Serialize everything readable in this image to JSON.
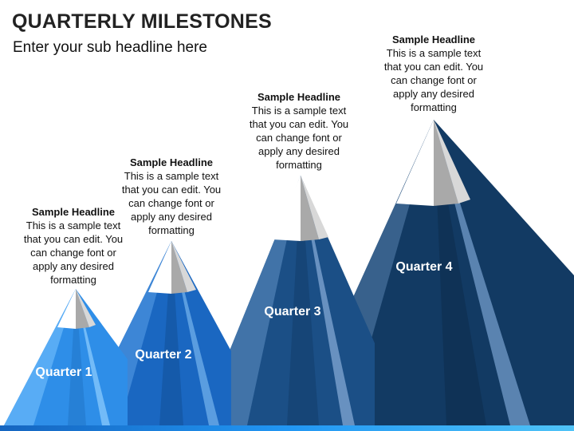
{
  "header": {
    "title": "QUARTERLY MILESTONES",
    "subtitle": "Enter your sub headline here"
  },
  "milestones": [
    {
      "quarter": "Quarter 1",
      "headline": "Sample Headline",
      "body": [
        "This is a sample text",
        "that you can edit. You",
        "can change font or",
        "apply any desired",
        "formatting"
      ],
      "colors": {
        "main": "#2e8ee8",
        "dark": "#1f6fc9",
        "light": "#58acf5"
      }
    },
    {
      "quarter": "Quarter 2",
      "headline": "Sample Headline",
      "body": [
        "This is a sample text",
        "that you can edit. You",
        "can change font or",
        "apply any desired",
        "formatting"
      ],
      "colors": {
        "main": "#1a67c1",
        "dark": "#124f9c",
        "light": "#3d86d6"
      }
    },
    {
      "quarter": "Quarter 3",
      "headline": "Sample Headline",
      "body": [
        "This is a sample text",
        "that you can edit. You",
        "can change font or",
        "apply any desired",
        "formatting"
      ],
      "colors": {
        "main": "#1b4f86",
        "dark": "#133b68",
        "light": "#4173a8"
      }
    },
    {
      "quarter": "Quarter 4",
      "headline": "Sample Headline",
      "body": [
        "This is a sample text",
        "that you can edit. You",
        "can change font or",
        "apply any desired",
        "formatting"
      ],
      "colors": {
        "main": "#123a63",
        "dark": "#0c2a4a",
        "light": "#38618c"
      }
    }
  ]
}
